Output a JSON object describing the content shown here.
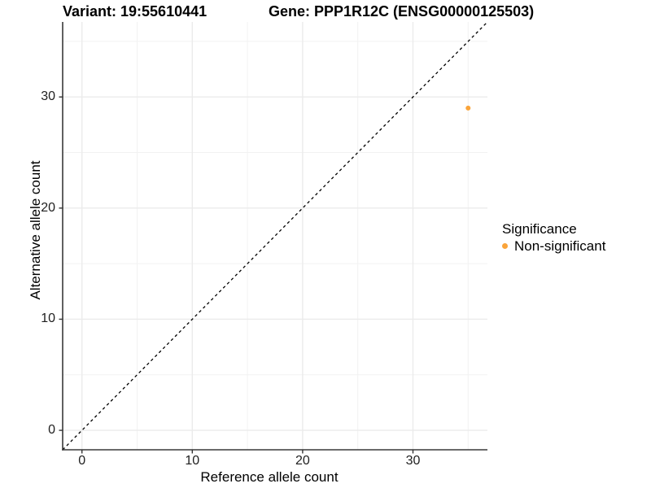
{
  "titles": {
    "variant": "Variant: 19:55610441",
    "gene": "Gene: PPP1R12C (ENSG00000125503)"
  },
  "axes": {
    "x": {
      "label": "Reference allele count",
      "tick_labels": [
        "0",
        "10",
        "20",
        "30"
      ],
      "tick_values": [
        0,
        10,
        20,
        30
      ]
    },
    "y": {
      "label": "Alternative allele count",
      "tick_labels": [
        "0",
        "10",
        "20",
        "30"
      ],
      "tick_values": [
        0,
        10,
        20,
        30
      ]
    }
  },
  "legend": {
    "title": "Significance",
    "items": [
      {
        "label": "Non-significant",
        "color": "#FAA43A"
      }
    ]
  },
  "chart_data": {
    "type": "scatter",
    "title": "Variant: 19:55610441 | Gene: PPP1R12C (ENSG00000125503)",
    "xlabel": "Reference allele count",
    "ylabel": "Alternative allele count",
    "xlim": [
      -1.75,
      36.75
    ],
    "ylim": [
      -1.75,
      36.75
    ],
    "x_major_gridlines": [
      0,
      10,
      20,
      30
    ],
    "x_minor_gridlines": [
      5,
      15,
      25,
      35
    ],
    "y_major_gridlines": [
      0,
      10,
      20,
      30
    ],
    "y_minor_gridlines": [
      5,
      15,
      25,
      35
    ],
    "grid": true,
    "legend_position": "right",
    "series": [
      {
        "name": "Non-significant",
        "color": "#FAA43A",
        "points": [
          {
            "x": 35,
            "y": 29
          }
        ]
      }
    ],
    "reference_line": {
      "type": "identity",
      "slope": 1,
      "intercept": 0,
      "style": "dashed",
      "color": "#000000"
    }
  },
  "colors": {
    "axis_line": "#383838",
    "tick_mark": "#333333",
    "grid_major": "#EBEBEB",
    "grid_minor": "#F2F2F2",
    "point": "#FAA43A",
    "background": "#FFFFFF"
  }
}
